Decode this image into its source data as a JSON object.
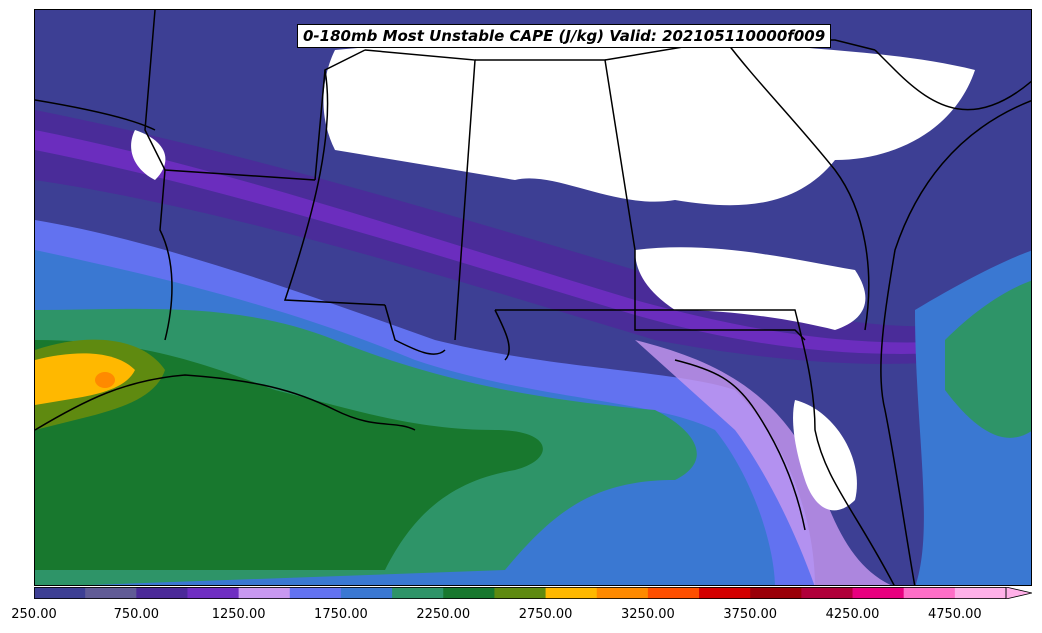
{
  "title": "0-180mb Most Unstable CAPE (J/kg) Valid: 202105110000f009",
  "colorbar": {
    "levels": [
      250,
      500,
      750,
      1000,
      1250,
      1500,
      1750,
      2000,
      2250,
      2500,
      2750,
      3000,
      3250,
      3500,
      3750,
      4000,
      4250,
      4500,
      4750,
      5000
    ],
    "colors": [
      "#3d3f94",
      "#605b96",
      "#4b2a99",
      "#6f2ec2",
      "#c898f0",
      "#6272f0",
      "#3a78d2",
      "#2e9468",
      "#18782e",
      "#5f8a10",
      "#ffb800",
      "#ff8a00",
      "#ff4f00",
      "#d40000",
      "#9a0008",
      "#b0003a",
      "#e8007f",
      "#ff6ec7",
      "#ffb0e8"
    ],
    "tick_labels": [
      "250.00",
      "750.00",
      "1250.00",
      "1750.00",
      "2250.00",
      "2750.00",
      "3250.00",
      "3750.00",
      "4250.00",
      "4750.00"
    ],
    "extend": "max"
  },
  "map": {
    "projection": "Lambert Conformal",
    "region": "Southeastern United States and Gulf of Mexico",
    "background_missing": "#ffffff"
  }
}
